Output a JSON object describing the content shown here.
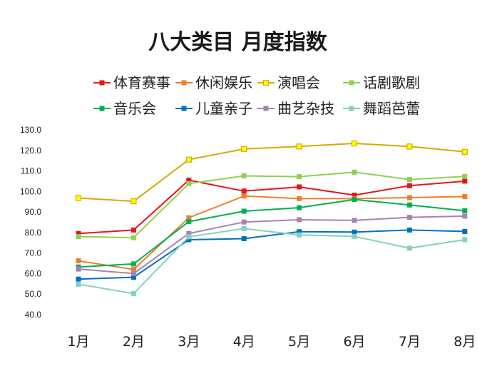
{
  "chart_data": {
    "type": "line",
    "title": "八大类目 月度指数",
    "categories": [
      "1月",
      "2月",
      "3月",
      "4月",
      "5月",
      "6月",
      "7月",
      "8月"
    ],
    "ylim": [
      40,
      130
    ],
    "yticks": [
      "130.0",
      "120.0",
      "110.0",
      "100.0",
      "90.0",
      "80.0",
      "70.0",
      "60.0",
      "50.0",
      "40.0"
    ],
    "ytick_values": [
      130,
      120,
      110,
      100,
      90,
      80,
      70,
      60,
      50,
      40
    ],
    "grid": false,
    "legend_position": "top",
    "series": [
      {
        "name": "体育赛事",
        "color": "#e8141b",
        "values": [
          79.5,
          81.2,
          105.5,
          100.2,
          102.2,
          98.2,
          102.8,
          105.0
        ]
      },
      {
        "name": "休闲娱乐",
        "color": "#ed7d31",
        "values": [
          66.2,
          62.0,
          87.2,
          97.8,
          96.5,
          96.5,
          97.0,
          97.5
        ]
      },
      {
        "name": "演唱会",
        "color": "#d9a800",
        "marker_fill": "#ffff00",
        "values": [
          96.8,
          95.2,
          115.5,
          120.7,
          121.9,
          123.4,
          121.9,
          119.3
        ]
      },
      {
        "name": "话剧歌剧",
        "color": "#92d050",
        "values": [
          78.0,
          77.5,
          103.8,
          107.6,
          107.2,
          109.4,
          105.8,
          107.3
        ]
      },
      {
        "name": "音乐会",
        "color": "#00b050",
        "values": [
          63.2,
          64.7,
          85.3,
          90.4,
          92.1,
          96.1,
          93.4,
          90.6
        ]
      },
      {
        "name": "儿童亲子",
        "color": "#0070c0",
        "values": [
          57.3,
          58.2,
          76.5,
          77.0,
          80.4,
          80.2,
          81.2,
          80.5
        ]
      },
      {
        "name": "曲艺杂技",
        "color": "#a682b6",
        "values": [
          62.2,
          60.0,
          79.5,
          85.1,
          86.2,
          85.9,
          87.4,
          88.0
        ]
      },
      {
        "name": "舞蹈芭蕾",
        "color": "#86d0c0",
        "values": [
          54.8,
          50.3,
          77.9,
          81.9,
          78.8,
          78.1,
          72.4,
          76.5
        ]
      }
    ]
  }
}
